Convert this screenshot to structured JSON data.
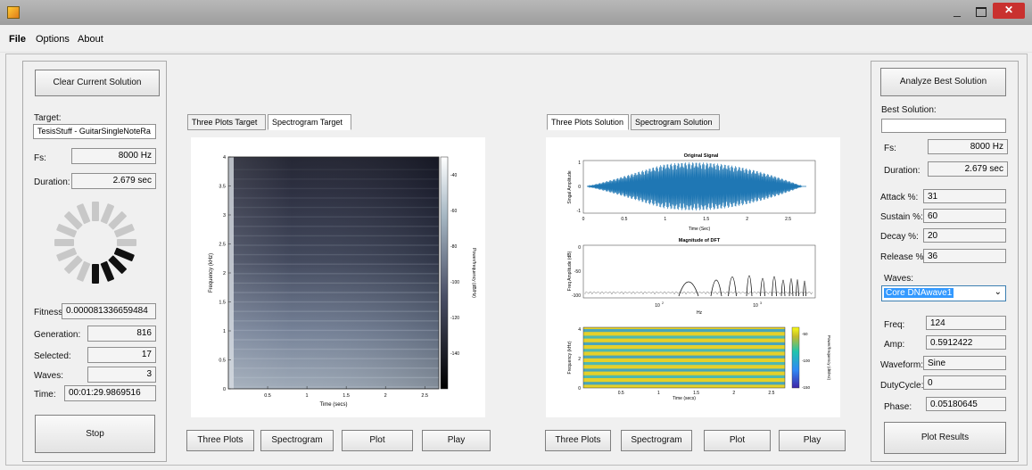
{
  "window": {
    "minimize_glyph": "_",
    "close_glyph": "✕",
    "icon": "app-icon"
  },
  "menu": {
    "items": [
      "File",
      "Options",
      "About"
    ]
  },
  "left_panel": {
    "clear_button": "Clear Current Solution",
    "target_label": "Target:",
    "target_value": "TesisStuff - GuitarSingleNoteRa",
    "fs_label": "Fs:",
    "fs_value": "8000 Hz",
    "duration_label": "Duration:",
    "duration_value": "2.679 sec",
    "fitness_label": "Fitness:",
    "fitness_value": "0.000081336659484",
    "generation_label": "Generation:",
    "generation_value": "816",
    "selected_label": "Selected:",
    "selected_value": "17",
    "waves_label": "Waves:",
    "waves_value": "3",
    "time_label": "Time:",
    "time_value": "00:01:29.9869516",
    "stop_button": "Stop"
  },
  "target_area": {
    "tabs": [
      "Three Plots Target",
      "Spectrogram Target"
    ],
    "selected_tab": 1,
    "buttons": [
      "Three Plots",
      "Spectrogram",
      "Plot",
      "Play"
    ],
    "spectrogram": {
      "ylabel": "Frequency (kHz)",
      "xlabel": "Time (secs)",
      "yticks": [
        "0",
        "0.5",
        "1",
        "1.5",
        "2",
        "2.5",
        "3",
        "3.5",
        "4"
      ],
      "xticks": [
        "0.5",
        "1",
        "1.5",
        "2",
        "2.5"
      ],
      "colorbar_label": "Power/frequency (dB/Hz)",
      "colorbar_ticks": [
        "-40",
        "-60",
        "-80",
        "-100",
        "-120",
        "-140"
      ]
    }
  },
  "solution_area": {
    "tabs": [
      "Three Plots Solution",
      "Spectrogram Solution"
    ],
    "selected_tab": 0,
    "buttons": [
      "Three Plots",
      "Spectrogram",
      "Plot",
      "Play"
    ],
    "plot1": {
      "title": "Original Signal",
      "ylabel": "Singal Amplitude",
      "xlabel": "Time (Sec)",
      "yticks": [
        "1",
        "0",
        "-1"
      ],
      "xticks": [
        "0",
        "0.5",
        "1",
        "1.5",
        "2",
        "2.5"
      ]
    },
    "plot2": {
      "title": "Magnitude of DFT",
      "ylabel": "Freq Amplitude (dB)",
      "xlabel": "Hz",
      "yticks": [
        "0",
        "-50",
        "-100"
      ],
      "xticks": [
        "10",
        "10"
      ],
      "xtick_exps": [
        "2",
        "3"
      ]
    },
    "plot3": {
      "ylabel": "Frequency (kHz)",
      "xlabel": "Time (secs)",
      "yticks": [
        "4",
        "2",
        "0"
      ],
      "xticks": [
        "0.5",
        "1",
        "1.5",
        "2",
        "2.5"
      ],
      "colorbar_label": "Power/frequency (dB/Hz)",
      "colorbar_ticks": [
        "-50",
        "-100",
        "-150"
      ]
    }
  },
  "right_panel": {
    "analyze_button": "Analyze Best Solution",
    "best_label": "Best Solution:",
    "best_value": "",
    "fs_label": "Fs:",
    "fs_value": "8000 Hz",
    "duration_label": "Duration:",
    "duration_value": "2.679 sec",
    "attack_label": "Attack %:",
    "attack_value": "31",
    "sustain_label": "Sustain %:",
    "sustain_value": "60",
    "decay_label": "Decay %:",
    "decay_value": "20",
    "release_label": "Release %:",
    "release_value": "36",
    "waves_label": "Waves:",
    "waves_select": "Core DNAwave1",
    "freq_label": "Freq:",
    "freq_value": "124",
    "amp_label": "Amp:",
    "amp_value": "0.5912422",
    "waveform_label": "Waveform:",
    "waveform_value": "Sine",
    "duty_label": "DutyCycle:",
    "duty_value": "0",
    "phase_label": "Phase:",
    "phase_value": "0.05180645",
    "plot_results_button": "Plot Results"
  },
  "colors": {
    "selection": "#3399ff",
    "close": "#c9312f",
    "signal": "#1f77b4"
  }
}
